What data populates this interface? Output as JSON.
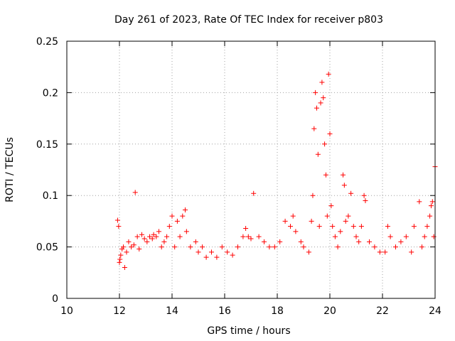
{
  "chart_data": {
    "type": "scatter",
    "title": "Day 261 of 2023, Rate Of TEC Index for receiver p803",
    "xlabel": "GPS time / hours",
    "ylabel": "ROTI / TECUs",
    "xlim": [
      10,
      24
    ],
    "ylim": [
      0,
      0.25
    ],
    "x_ticks": [
      "10",
      "12",
      "14",
      "16",
      "18",
      "20",
      "22",
      "24"
    ],
    "y_ticks": [
      "0",
      "0.05",
      "0.1",
      "0.15",
      "0.2",
      "0.25"
    ],
    "grid": true,
    "marker": "+",
    "color": "#ff0000",
    "series": [
      {
        "x": [
          11.93,
          11.97,
          12.0,
          12.02,
          12.05,
          12.1,
          12.15,
          12.2,
          12.27,
          12.35,
          12.45,
          12.55,
          12.6,
          12.68,
          12.75,
          12.85,
          12.95,
          13.05,
          13.15,
          13.25,
          13.3,
          13.4,
          13.5,
          13.6,
          13.7,
          13.8,
          13.9,
          14.0,
          14.1,
          14.2,
          14.3,
          14.4,
          14.5,
          14.55,
          14.7,
          14.9,
          15.0,
          15.15,
          15.3,
          15.5,
          15.7,
          15.9,
          16.1,
          16.3,
          16.5,
          16.7,
          16.8,
          16.9,
          17.0,
          17.1,
          17.3,
          17.5,
          17.7,
          17.9,
          18.1,
          18.3,
          18.5,
          18.6,
          18.7,
          18.9,
          19.0,
          19.2,
          19.3,
          19.35,
          19.4,
          19.45,
          19.5,
          19.55,
          19.6,
          19.65,
          19.7,
          19.75,
          19.8,
          19.85,
          19.9,
          19.95,
          20.0,
          20.05,
          20.1,
          20.2,
          20.3,
          20.4,
          20.5,
          20.55,
          20.6,
          20.7,
          20.8,
          20.9,
          21.0,
          21.1,
          21.2,
          21.3,
          21.35,
          21.5,
          21.7,
          21.9,
          22.1,
          22.2,
          22.3,
          22.5,
          22.7,
          22.9,
          23.1,
          23.2,
          23.4,
          23.5,
          23.6,
          23.7,
          23.8,
          23.85,
          23.9,
          23.95,
          24.0
        ],
        "y": [
          0.076,
          0.07,
          0.035,
          0.038,
          0.042,
          0.048,
          0.05,
          0.03,
          0.045,
          0.055,
          0.05,
          0.052,
          0.103,
          0.06,
          0.048,
          0.062,
          0.058,
          0.055,
          0.06,
          0.058,
          0.062,
          0.06,
          0.065,
          0.05,
          0.055,
          0.06,
          0.07,
          0.08,
          0.05,
          0.075,
          0.06,
          0.08,
          0.086,
          0.065,
          0.05,
          0.055,
          0.045,
          0.05,
          0.04,
          0.045,
          0.04,
          0.05,
          0.045,
          0.042,
          0.05,
          0.06,
          0.068,
          0.06,
          0.058,
          0.102,
          0.06,
          0.055,
          0.05,
          0.05,
          0.055,
          0.075,
          0.07,
          0.08,
          0.065,
          0.055,
          0.05,
          0.045,
          0.075,
          0.1,
          0.165,
          0.2,
          0.185,
          0.14,
          0.07,
          0.19,
          0.21,
          0.195,
          0.15,
          0.12,
          0.08,
          0.218,
          0.16,
          0.09,
          0.07,
          0.06,
          0.05,
          0.065,
          0.12,
          0.11,
          0.075,
          0.08,
          0.102,
          0.07,
          0.06,
          0.055,
          0.07,
          0.1,
          0.095,
          0.055,
          0.05,
          0.045,
          0.045,
          0.07,
          0.06,
          0.05,
          0.055,
          0.06,
          0.045,
          0.07,
          0.094,
          0.05,
          0.06,
          0.07,
          0.08,
          0.09,
          0.094,
          0.06,
          0.128
        ]
      }
    ]
  }
}
